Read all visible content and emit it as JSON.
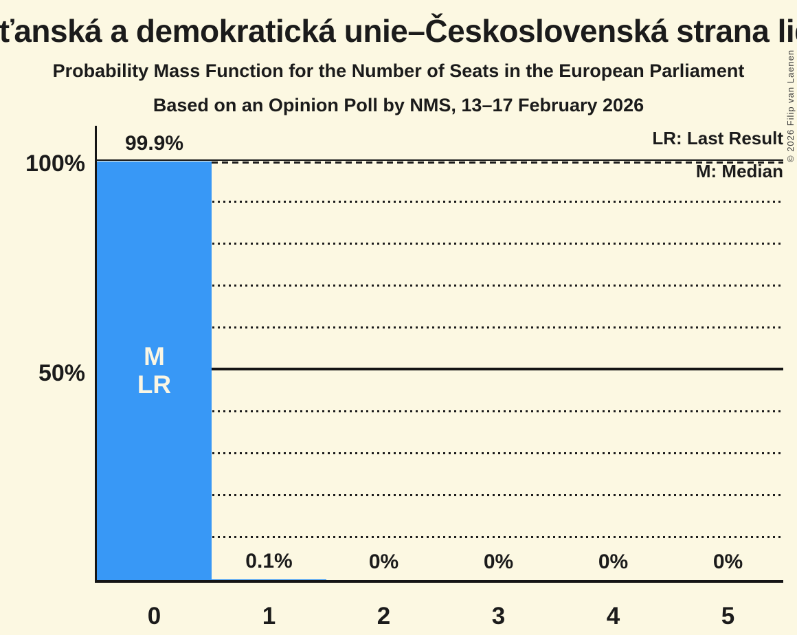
{
  "copyright": "© 2026 Filip van Laenen",
  "colors": {
    "background": "#FCF8E2",
    "bar": "#3898F6",
    "text": "#1B1B1B",
    "bar_label": "#FAF6E4",
    "axis": "#151515"
  },
  "chart_data": {
    "type": "bar",
    "title": "Křesťanská a demokratická unie–Československá strana lidová",
    "subtitle": "Probability Mass Function for the Number of Seats in the European Parliament",
    "source_line": "Based on an Opinion Poll by NMS, 13–17 February 2026",
    "categories": [
      "0",
      "1",
      "2",
      "3",
      "4",
      "5"
    ],
    "values": [
      99.9,
      0.1,
      0,
      0,
      0,
      0
    ],
    "value_labels": [
      "99.9%",
      "0.1%",
      "0%",
      "0%",
      "0%",
      "0%"
    ],
    "bar_annotations": [
      {
        "category_index": 0,
        "lines": [
          "M",
          "LR"
        ]
      }
    ],
    "legend": [
      {
        "label": "LR: Last Result"
      },
      {
        "label": "M: Median"
      }
    ],
    "legend_position": "top-right",
    "xlabel": "",
    "ylabel": "",
    "ylim": [
      0,
      100
    ],
    "yticks": [
      {
        "value": 50,
        "label": "50%"
      },
      {
        "value": 100,
        "label": "100%"
      }
    ],
    "minor_gridlines": [
      10,
      20,
      30,
      40,
      60,
      70,
      80,
      90
    ],
    "major_gridlines": [
      50,
      100
    ],
    "dashed_line_level": 99.9,
    "grid": true
  }
}
